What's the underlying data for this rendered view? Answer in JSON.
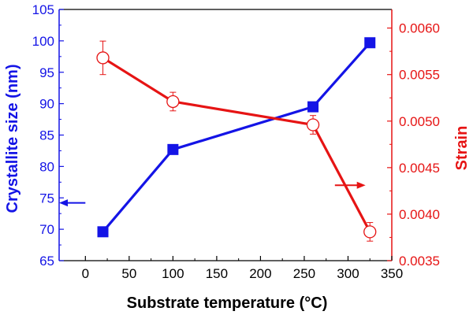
{
  "chart_data": {
    "type": "line",
    "xlabel": "Substrate temperature (°C)",
    "xlim": [
      -30,
      350
    ],
    "xticks": [
      0,
      50,
      100,
      150,
      200,
      250,
      300,
      350
    ],
    "y_left": {
      "label": "Crystallite size (nm)",
      "lim": [
        65,
        105
      ],
      "ticks": [
        65,
        70,
        75,
        80,
        85,
        90,
        95,
        100,
        105
      ],
      "color": "#1414e6"
    },
    "y_right": {
      "label": "Strain",
      "lim": [
        0.0035,
        0.0062
      ],
      "ticks": [
        "0.0035",
        "0.0040",
        "0.0045",
        "0.0050",
        "0.0055",
        "0.0060"
      ],
      "color": "#e61414"
    },
    "series": [
      {
        "axis": "left",
        "marker": "filled-square",
        "color": "#1414e6",
        "x": [
          20,
          100,
          260,
          325
        ],
        "y": [
          69.6,
          82.7,
          89.5,
          99.7
        ]
      },
      {
        "axis": "right",
        "marker": "open-circle",
        "color": "#e61414",
        "x": [
          20,
          100,
          260,
          325
        ],
        "y": [
          0.00568,
          0.00521,
          0.00496,
          0.00381
        ],
        "error": [
          0.00018,
          0.0001,
          0.0001,
          0.0001
        ]
      }
    ],
    "annotations": [
      {
        "type": "arrow",
        "direction": "left",
        "color": "#1414e6",
        "x_from": 0,
        "x_to": -30,
        "y": 74.2,
        "axis": "left"
      },
      {
        "type": "arrow",
        "direction": "right",
        "color": "#e61414",
        "x_from": 285,
        "x_to": 320,
        "y": 0.00431,
        "axis": "right"
      }
    ],
    "grid": false
  }
}
